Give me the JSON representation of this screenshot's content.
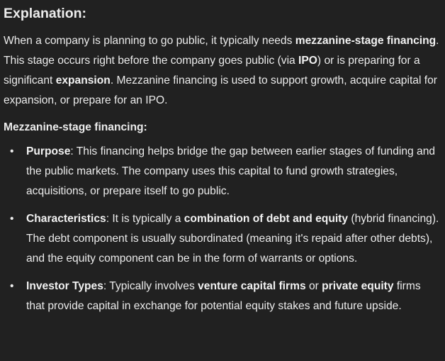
{
  "heading": "Explanation:",
  "intro": [
    {
      "text": "When a company is planning to go public, it typically needs ",
      "bold": false
    },
    {
      "text": "mezzanine-stage financing",
      "bold": true
    },
    {
      "text": ". This stage occurs right before the company goes public (via ",
      "bold": false
    },
    {
      "text": "IPO",
      "bold": true
    },
    {
      "text": ") or is preparing for a significant ",
      "bold": false
    },
    {
      "text": "expansion",
      "bold": true
    },
    {
      "text": ". Mezzanine financing is used to support growth, acquire capital for expansion, or prepare for an IPO.",
      "bold": false
    }
  ],
  "subheading": "Mezzanine-stage financing:",
  "bullet_glyph": "•",
  "bullets": [
    [
      {
        "text": "Purpose",
        "bold": true
      },
      {
        "text": ": This financing helps bridge the gap between earlier stages of funding and the public markets. The company uses this capital to fund growth strategies, acquisitions, or prepare itself to go public.",
        "bold": false
      }
    ],
    [
      {
        "text": "Characteristics",
        "bold": true
      },
      {
        "text": ": It is typically a ",
        "bold": false
      },
      {
        "text": "combination of debt and equity",
        "bold": true
      },
      {
        "text": " (hybrid financing). The debt component is usually subordinated (meaning it's repaid after other debts), and the equity component can be in the form of warrants or options.",
        "bold": false
      }
    ],
    [
      {
        "text": "Investor Types",
        "bold": true
      },
      {
        "text": ": Typically involves ",
        "bold": false
      },
      {
        "text": "venture capital firms",
        "bold": true
      },
      {
        "text": " or ",
        "bold": false
      },
      {
        "text": "private equity",
        "bold": true
      },
      {
        "text": " firms that provide capital in exchange for potential equity stakes and future upside.",
        "bold": false
      }
    ]
  ]
}
